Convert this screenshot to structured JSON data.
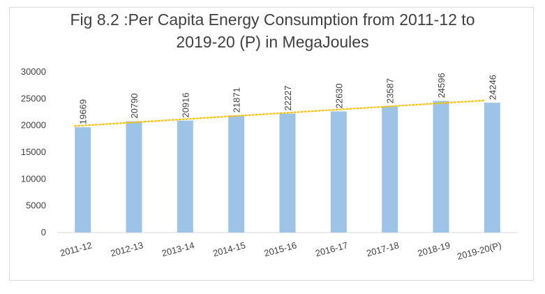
{
  "chart_data": {
    "type": "bar",
    "title_line1": "Fig 8.2 :Per Capita Energy Consumption from 2011-12 to",
    "title_line2": "2019-20 (P) in MegaJoules",
    "categories": [
      "2011-12",
      "2012-13",
      "2013-14",
      "2014-15",
      "2015-16",
      "2016-17",
      "2017-18",
      "2018-19",
      "2019-20(P)"
    ],
    "values": [
      19669,
      20790,
      20916,
      21871,
      22227,
      22630,
      23587,
      24596,
      24246
    ],
    "ylim": [
      0,
      30000
    ],
    "yticks": [
      0,
      5000,
      10000,
      15000,
      20000,
      25000,
      30000
    ],
    "grid": false,
    "trendline": "linear",
    "colors": {
      "bar": "#9dc3e6",
      "trend": "#ffc000"
    }
  }
}
